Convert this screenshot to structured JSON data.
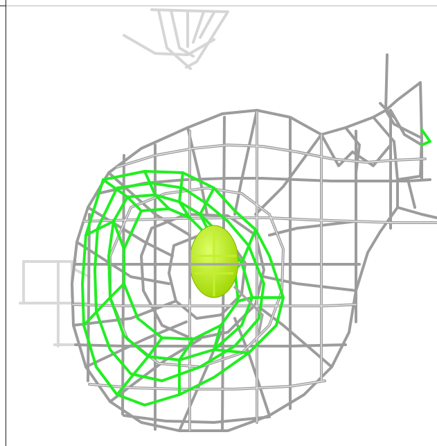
{
  "scene": {
    "background_color": "#ffffff",
    "mesh_primary_color": "#9c9c9c",
    "mesh_highlight_color": "#e6e6e6",
    "mesh_secondary_color": "#22ee22",
    "faded_structure_color": "#d4d4d4",
    "central_sphere_color": "#9fd600",
    "central_sphere_highlight": "#ddff66"
  }
}
